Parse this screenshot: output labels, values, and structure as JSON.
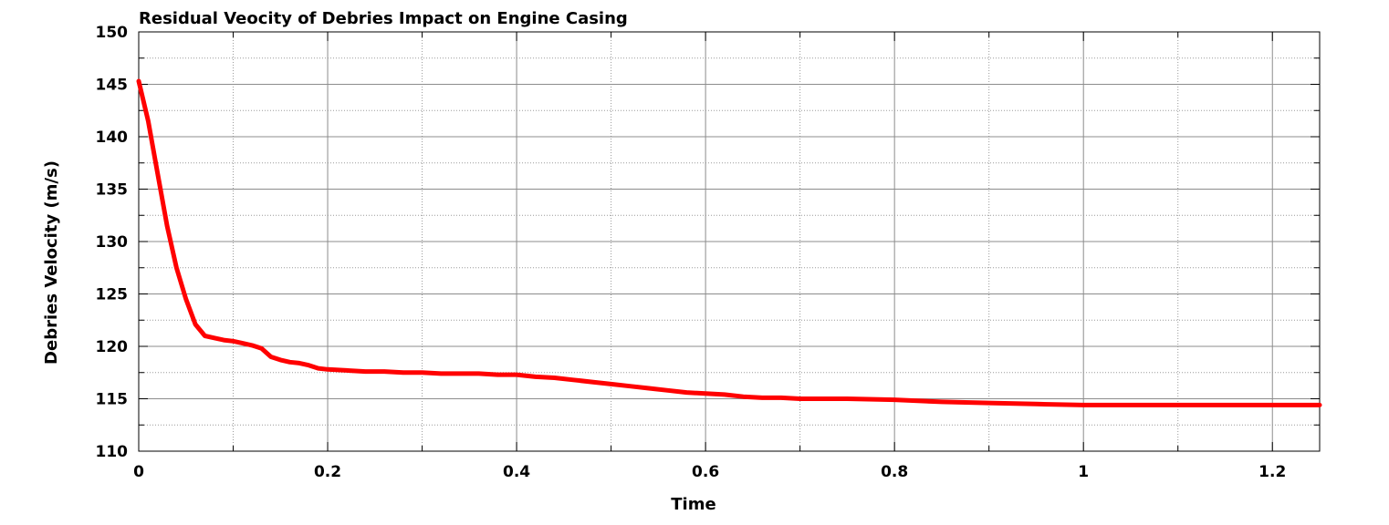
{
  "chart_data": {
    "type": "line",
    "title": "Residual Veocity of Debries Impact on Engine Casing",
    "xlabel": "Time",
    "ylabel": "Debries Velocity (m/s)",
    "xlim": [
      0,
      1.25
    ],
    "ylim": [
      110,
      150
    ],
    "x_ticks": [
      0,
      0.2,
      0.4,
      0.6,
      0.8,
      1,
      1.2
    ],
    "x_tick_labels": [
      "0",
      "0.2",
      "0.4",
      "0.6",
      "0.8",
      "1",
      "1.2"
    ],
    "x_minor_ticks": [
      0.1,
      0.3,
      0.5,
      0.7,
      0.9,
      1.1
    ],
    "y_ticks": [
      110,
      115,
      120,
      125,
      130,
      135,
      140,
      145,
      150
    ],
    "y_tick_labels": [
      "110",
      "115",
      "120",
      "125",
      "130",
      "135",
      "140",
      "145",
      "150"
    ],
    "y_minor_ticks": [
      112.5,
      117.5,
      122.5,
      127.5,
      132.5,
      137.5,
      142.5,
      147.5
    ],
    "grid": true,
    "legend": "none",
    "series": [
      {
        "color": "#ff0000",
        "x": [
          0,
          0.01,
          0.02,
          0.03,
          0.04,
          0.05,
          0.06,
          0.07,
          0.08,
          0.09,
          0.1,
          0.11,
          0.12,
          0.13,
          0.14,
          0.15,
          0.16,
          0.17,
          0.18,
          0.19,
          0.2,
          0.22,
          0.24,
          0.26,
          0.28,
          0.3,
          0.32,
          0.34,
          0.36,
          0.38,
          0.4,
          0.42,
          0.44,
          0.46,
          0.48,
          0.5,
          0.52,
          0.54,
          0.56,
          0.58,
          0.6,
          0.62,
          0.64,
          0.66,
          0.68,
          0.7,
          0.75,
          0.8,
          0.85,
          0.9,
          0.95,
          1.0,
          1.05,
          1.1,
          1.15,
          1.2,
          1.25
        ],
        "y": [
          145.3,
          141.5,
          136.5,
          131.5,
          127.5,
          124.5,
          122.1,
          121.0,
          120.8,
          120.6,
          120.5,
          120.3,
          120.1,
          119.8,
          119.0,
          118.7,
          118.5,
          118.4,
          118.2,
          117.9,
          117.8,
          117.7,
          117.6,
          117.6,
          117.5,
          117.5,
          117.4,
          117.4,
          117.4,
          117.3,
          117.3,
          117.1,
          117.0,
          116.8,
          116.6,
          116.4,
          116.2,
          116.0,
          115.8,
          115.6,
          115.5,
          115.4,
          115.2,
          115.1,
          115.1,
          115.0,
          115.0,
          114.9,
          114.7,
          114.6,
          114.5,
          114.4,
          114.4,
          114.4,
          114.4,
          114.4,
          114.4
        ]
      }
    ]
  }
}
